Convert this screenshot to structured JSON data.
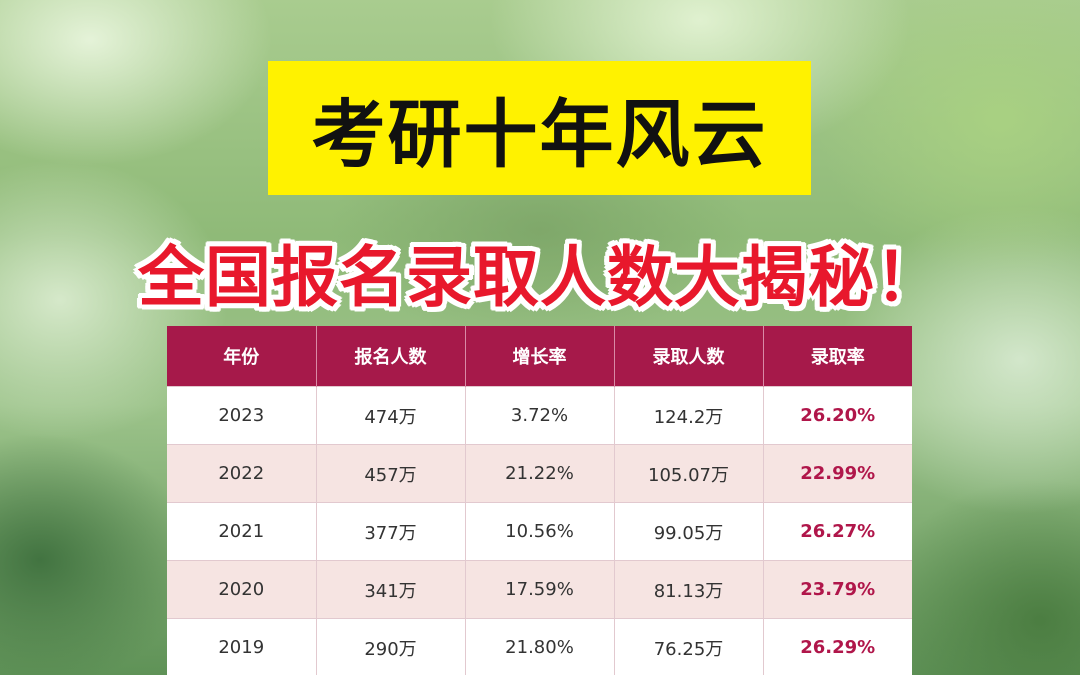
{
  "title": "考研十年风云",
  "subtitle": "全国报名录取人数大揭秘！",
  "colors": {
    "title_bg": "#fff200",
    "subtitle": "#e8182c",
    "header_bg": "#a6194a",
    "rate_text": "#b0164a",
    "alt_row": "#f6e4e2"
  },
  "table": {
    "headers": [
      "年份",
      "报名人数",
      "增长率",
      "录取人数",
      "录取率"
    ],
    "rows": [
      [
        "2023",
        "474万",
        "3.72%",
        "124.2万",
        "26.20%"
      ],
      [
        "2022",
        "457万",
        "21.22%",
        "105.07万",
        "22.99%"
      ],
      [
        "2021",
        "377万",
        "10.56%",
        "99.05万",
        "26.27%"
      ],
      [
        "2020",
        "341万",
        "17.59%",
        "81.13万",
        "23.79%"
      ],
      [
        "2019",
        "290万",
        "21.80%",
        "76.25万",
        "26.29%"
      ]
    ]
  }
}
